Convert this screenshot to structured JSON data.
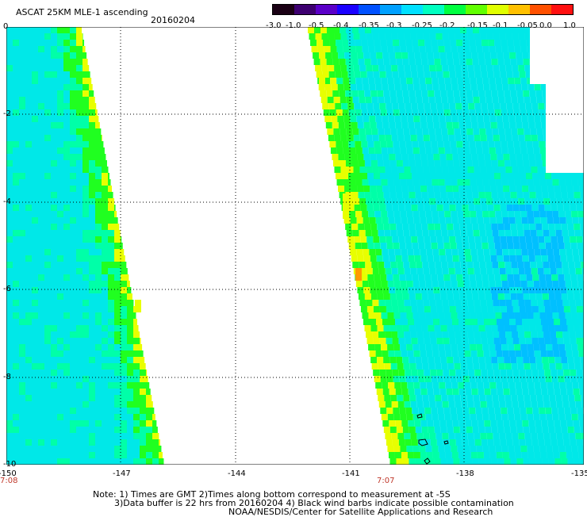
{
  "header": {
    "title": "ASCAT 25KM MLE-1 ascending",
    "date": "20160204"
  },
  "colorbar": {
    "labels": [
      "-3.0",
      "-1.0",
      "-0.5",
      "-0.4",
      "-0.35",
      "-0.3",
      "-0.25",
      "-0.2",
      "-0.15",
      "-0.1",
      "-0.05",
      "0.0",
      "1.0"
    ],
    "colors": [
      "#1a0014",
      "#3d0070",
      "#5a00c8",
      "#1a00ff",
      "#0050ff",
      "#00a0ff",
      "#00e0ff",
      "#00ffc0",
      "#00ff40",
      "#60ff00",
      "#e0ff00",
      "#ffc000",
      "#ff5000",
      "#ff1010"
    ]
  },
  "map": {
    "lat_labels": [
      "0",
      "-2",
      "-4",
      "-6",
      "-8",
      "-10"
    ],
    "lon_labels": [
      "-150",
      "-147",
      "-144",
      "-141",
      "-138",
      "-135"
    ],
    "times": [
      "7:08",
      "7:07"
    ],
    "swath_colors": {
      "low": "#00e8e8",
      "mid": "#00ffa8",
      "high": "#20ff20",
      "very_high": "#e8ff00",
      "peak": "#ff9a00"
    }
  },
  "footer": {
    "note_line1": "Note: 1) Times are GMT 2)Times along bottom correspond to measurement at -5S",
    "note_line2": "3)Data buffer is 22 hrs from 20160204 4) Black wind barbs indicate possible contamination",
    "note_line3": "NOAA/NESDIS/Center for Satellite Applications and Research"
  }
}
